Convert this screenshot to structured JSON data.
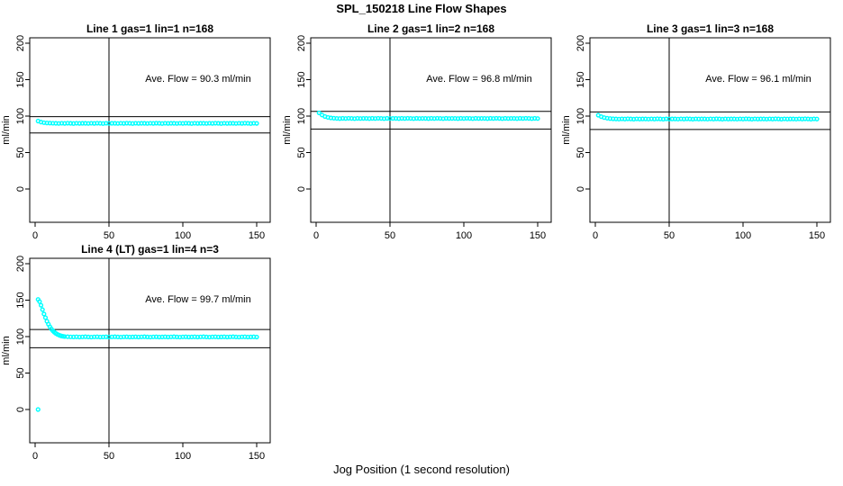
{
  "figure": {
    "title": "SPL_150218  Line Flow Shapes",
    "xlabel": "Jog Position (1 second resolution)",
    "ylabel": "ml/min",
    "point_color": "#00FFFF",
    "line_color": "#000000",
    "background": "#FFFFFF"
  },
  "chart_data": [
    {
      "type": "scatter",
      "title": "Line 1 gas=1 lin=1 n=168",
      "annotation": "Ave. Flow =  90.3  ml/min",
      "ave_flow_ml_min": 90.3,
      "ylabel": "ml/min",
      "xticks": [
        0,
        50,
        100,
        150
      ],
      "yticks": [
        0,
        50,
        100,
        150,
        200
      ],
      "xlim": [
        0,
        150
      ],
      "ylim": [
        0,
        200
      ],
      "vline_x": 50,
      "hlines": [
        99.3,
        76.8
      ],
      "x": [
        2,
        4,
        6,
        8,
        10,
        12,
        14,
        16,
        18,
        20,
        22,
        24,
        26,
        28,
        30,
        32,
        34,
        36,
        38,
        40,
        42,
        44,
        46,
        48,
        50,
        52,
        54,
        56,
        58,
        60,
        62,
        64,
        66,
        68,
        70,
        72,
        74,
        76,
        78,
        80,
        82,
        84,
        86,
        88,
        90,
        92,
        94,
        96,
        98,
        100,
        102,
        104,
        106,
        108,
        110,
        112,
        114,
        116,
        118,
        120,
        122,
        124,
        126,
        128,
        130,
        132,
        134,
        136,
        138,
        140,
        142,
        144,
        146,
        148,
        150
      ],
      "y": [
        93.2,
        91.8,
        91.0,
        90.6,
        90.4,
        90.2,
        90.1,
        89.9,
        90.2,
        90.0,
        90.3,
        90.1,
        89.8,
        90.2,
        90.0,
        90.1,
        90.1,
        89.9,
        90.2,
        90.0,
        90.3,
        90.1,
        89.8,
        90.2,
        90.0,
        90.1,
        90.1,
        89.9,
        90.2,
        90.0,
        90.3,
        90.1,
        89.8,
        90.2,
        90.0,
        90.1,
        90.1,
        89.9,
        90.2,
        90.0,
        90.3,
        90.1,
        89.8,
        90.2,
        90.0,
        90.1,
        90.1,
        89.9,
        90.2,
        90.0,
        90.3,
        90.1,
        89.8,
        90.2,
        90.0,
        90.1,
        90.1,
        89.9,
        90.2,
        90.0,
        90.3,
        90.1,
        89.8,
        90.2,
        90.0,
        90.1,
        90.1,
        89.9,
        90.2,
        90.0,
        90.3,
        90.1,
        89.8,
        90.2,
        90.0
      ]
    },
    {
      "type": "scatter",
      "title": "Line 2 gas=1 lin=2 n=168",
      "annotation": "Ave. Flow =  96.8  ml/min",
      "ave_flow_ml_min": 96.8,
      "ylabel": "ml/min",
      "xticks": [
        0,
        50,
        100,
        150
      ],
      "yticks": [
        0,
        50,
        100,
        150,
        200
      ],
      "xlim": [
        0,
        150
      ],
      "ylim": [
        0,
        200
      ],
      "vline_x": 50,
      "hlines": [
        106.5,
        82.3
      ],
      "x": [
        2,
        4,
        6,
        8,
        10,
        12,
        14,
        16,
        18,
        20,
        22,
        24,
        26,
        28,
        30,
        32,
        34,
        36,
        38,
        40,
        42,
        44,
        46,
        48,
        50,
        52,
        54,
        56,
        58,
        60,
        62,
        64,
        66,
        68,
        70,
        72,
        74,
        76,
        78,
        80,
        82,
        84,
        86,
        88,
        90,
        92,
        94,
        96,
        98,
        100,
        102,
        104,
        106,
        108,
        110,
        112,
        114,
        116,
        118,
        120,
        122,
        124,
        126,
        128,
        130,
        132,
        134,
        136,
        138,
        140,
        142,
        144,
        146,
        148,
        150
      ],
      "y": [
        104.5,
        101.5,
        99.4,
        98.2,
        97.5,
        97.1,
        96.8,
        96.6,
        96.9,
        96.7,
        97.0,
        96.8,
        96.5,
        96.9,
        96.7,
        96.8,
        96.8,
        96.6,
        96.9,
        96.7,
        97.0,
        96.8,
        96.5,
        96.9,
        96.7,
        96.8,
        96.8,
        96.6,
        96.9,
        96.7,
        97.0,
        96.8,
        96.5,
        96.9,
        96.7,
        96.8,
        96.8,
        96.6,
        96.9,
        96.7,
        97.0,
        96.8,
        96.5,
        96.9,
        96.7,
        96.8,
        96.8,
        96.6,
        96.9,
        96.7,
        97.0,
        96.8,
        96.5,
        96.9,
        96.7,
        96.8,
        96.8,
        96.6,
        96.9,
        96.7,
        97.0,
        96.8,
        96.5,
        96.9,
        96.7,
        96.8,
        96.8,
        96.6,
        96.9,
        96.7,
        97.0,
        96.8,
        96.5,
        96.9,
        96.7
      ]
    },
    {
      "type": "scatter",
      "title": "Line 3 gas=1 lin=3 n=168",
      "annotation": "Ave. Flow =  96.1  ml/min",
      "ave_flow_ml_min": 96.1,
      "ylabel": "ml/min",
      "xticks": [
        0,
        50,
        100,
        150
      ],
      "yticks": [
        0,
        50,
        100,
        150,
        200
      ],
      "xlim": [
        0,
        150
      ],
      "ylim": [
        0,
        200
      ],
      "vline_x": 50,
      "hlines": [
        105.7,
        81.7
      ],
      "x": [
        2,
        4,
        6,
        8,
        10,
        12,
        14,
        16,
        18,
        20,
        22,
        24,
        26,
        28,
        30,
        32,
        34,
        36,
        38,
        40,
        42,
        44,
        46,
        48,
        50,
        52,
        54,
        56,
        58,
        60,
        62,
        64,
        66,
        68,
        70,
        72,
        74,
        76,
        78,
        80,
        82,
        84,
        86,
        88,
        90,
        92,
        94,
        96,
        98,
        100,
        102,
        104,
        106,
        108,
        110,
        112,
        114,
        116,
        118,
        120,
        122,
        124,
        126,
        128,
        130,
        132,
        134,
        136,
        138,
        140,
        142,
        144,
        146,
        148,
        150
      ],
      "y": [
        101.2,
        99.2,
        97.9,
        97.1,
        96.6,
        96.3,
        96.1,
        95.9,
        96.2,
        96.0,
        96.3,
        96.1,
        95.8,
        96.2,
        96.0,
        96.1,
        96.1,
        95.9,
        96.2,
        96.0,
        96.3,
        96.1,
        95.8,
        96.2,
        96.0,
        96.1,
        96.1,
        95.9,
        96.2,
        96.0,
        96.3,
        96.1,
        95.8,
        96.2,
        96.0,
        96.1,
        96.1,
        95.9,
        96.2,
        96.0,
        96.3,
        96.1,
        95.8,
        96.2,
        96.0,
        96.1,
        96.1,
        95.9,
        96.2,
        96.0,
        96.3,
        96.1,
        95.8,
        96.2,
        96.0,
        96.1,
        96.1,
        95.9,
        96.2,
        96.0,
        96.3,
        96.1,
        95.8,
        96.2,
        96.0,
        96.1,
        96.1,
        95.9,
        96.2,
        96.0,
        96.3,
        96.1,
        95.8,
        96.2,
        96.0
      ]
    },
    {
      "type": "scatter",
      "title": "Line 4 (LT) gas=1 lin=4 n=3",
      "annotation": "Ave. Flow =  99.7  ml/min",
      "ave_flow_ml_min": 99.7,
      "ylabel": "ml/min",
      "xticks": [
        0,
        50,
        100,
        150
      ],
      "yticks": [
        0,
        50,
        100,
        150,
        200
      ],
      "xlim": [
        0,
        150
      ],
      "ylim": [
        0,
        200
      ],
      "vline_x": 50,
      "hlines": [
        109.7,
        84.7
      ],
      "x": [
        2,
        3,
        4,
        5,
        6,
        7,
        8,
        9,
        10,
        11,
        12,
        13,
        14,
        15,
        16,
        17,
        18,
        19,
        20,
        22,
        24,
        26,
        28,
        30,
        32,
        34,
        36,
        38,
        40,
        42,
        44,
        46,
        48,
        50,
        52,
        54,
        56,
        58,
        60,
        62,
        64,
        66,
        68,
        70,
        72,
        74,
        76,
        78,
        80,
        82,
        84,
        86,
        88,
        90,
        92,
        94,
        96,
        98,
        100,
        102,
        104,
        106,
        108,
        110,
        112,
        114,
        116,
        118,
        120,
        122,
        124,
        126,
        128,
        130,
        132,
        134,
        136,
        138,
        140,
        142,
        144,
        146,
        148,
        150,
        2
      ],
      "y": [
        151,
        148,
        143,
        137,
        131,
        126,
        121,
        117,
        113.5,
        110.5,
        108,
        106,
        104.5,
        103.2,
        102.2,
        101.4,
        100.8,
        100.4,
        100.1,
        99.8,
        99.6,
        99.5,
        99.7,
        99.4,
        99.6,
        99.8,
        99.5,
        99.3,
        99.6,
        99.7,
        99.4,
        99.5,
        99.7,
        99.4,
        99.6,
        99.8,
        99.5,
        99.3,
        99.6,
        99.7,
        99.4,
        99.5,
        99.7,
        99.4,
        99.6,
        99.8,
        99.5,
        99.3,
        99.6,
        99.7,
        99.4,
        99.5,
        99.7,
        99.4,
        99.6,
        99.8,
        99.5,
        99.3,
        99.6,
        99.7,
        99.4,
        99.5,
        99.7,
        99.4,
        99.6,
        99.8,
        99.5,
        99.3,
        99.6,
        99.7,
        99.4,
        99.5,
        99.7,
        99.4,
        99.6,
        99.8,
        99.5,
        99.3,
        99.6,
        99.7,
        99.4,
        99.5,
        99.7,
        99.4,
        0
      ]
    }
  ]
}
